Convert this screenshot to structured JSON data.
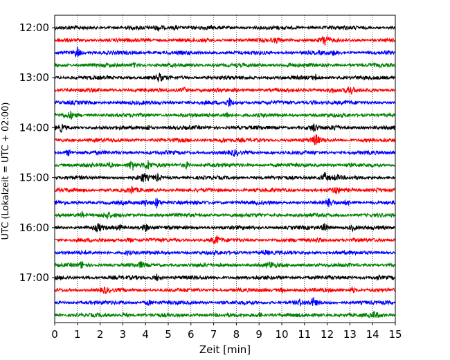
{
  "chart_data": {
    "type": "line",
    "title": "",
    "xlabel": "Zeit  [min]",
    "ylabel": "UTC (Lokalzeit = UTC + 02:00)",
    "xlim": [
      0,
      15
    ],
    "xticks": [
      "0",
      "1",
      "2",
      "3",
      "4",
      "5",
      "6",
      "7",
      "8",
      "9",
      "10",
      "11",
      "12",
      "13",
      "14",
      "15"
    ],
    "yticks": [
      "12:00",
      "13:00",
      "14:00",
      "15:00",
      "16:00",
      "17:00"
    ],
    "grid": "vertical dotted",
    "series_colors": [
      "#000000",
      "#ff0000",
      "#0000ff",
      "#008000"
    ],
    "traces": [
      {
        "time": "12:00",
        "color": "#000000",
        "events": [
          [
            4.6,
            0.5
          ],
          [
            5.3,
            0.3
          ]
        ]
      },
      {
        "time": "12:15",
        "color": "#ff0000",
        "events": [
          [
            11.9,
            1.0
          ],
          [
            9.8,
            0.3
          ]
        ]
      },
      {
        "time": "12:30",
        "color": "#0000ff",
        "events": [
          [
            1.0,
            0.9
          ],
          [
            12.3,
            0.3
          ]
        ]
      },
      {
        "time": "12:45",
        "color": "#008000",
        "events": [
          [
            3.5,
            0.3
          ],
          [
            10.3,
            0.3
          ]
        ]
      },
      {
        "time": "13:00",
        "color": "#000000",
        "events": [
          [
            4.6,
            0.6
          ],
          [
            11.5,
            0.3
          ]
        ]
      },
      {
        "time": "13:15",
        "color": "#ff0000",
        "events": [
          [
            5.7,
            0.4
          ],
          [
            13.0,
            0.7
          ],
          [
            12.2,
            0.4
          ]
        ]
      },
      {
        "time": "13:30",
        "color": "#0000ff",
        "events": [
          [
            7.7,
            0.7
          ],
          [
            11.4,
            0.3
          ]
        ]
      },
      {
        "time": "13:45",
        "color": "#008000",
        "events": [
          [
            0.7,
            0.5
          ],
          [
            7.6,
            0.5
          ]
        ]
      },
      {
        "time": "14:00",
        "color": "#000000",
        "events": [
          [
            0.3,
            0.5
          ],
          [
            11.4,
            0.6
          ],
          [
            12.4,
            0.4
          ],
          [
            4.1,
            0.4
          ]
        ]
      },
      {
        "time": "14:15",
        "color": "#ff0000",
        "events": [
          [
            11.5,
            0.9
          ],
          [
            7.4,
            0.4
          ]
        ]
      },
      {
        "time": "14:30",
        "color": "#0000ff",
        "events": [
          [
            0.6,
            0.5
          ],
          [
            7.9,
            0.4
          ]
        ]
      },
      {
        "time": "14:45",
        "color": "#008000",
        "events": [
          [
            3.4,
            1.0
          ],
          [
            4.1,
            0.7
          ],
          [
            5.8,
            0.5
          ],
          [
            2.4,
            0.4
          ]
        ]
      },
      {
        "time": "15:00",
        "color": "#000000",
        "events": [
          [
            3.9,
            0.7
          ],
          [
            4.5,
            0.5
          ],
          [
            11.9,
            0.8
          ],
          [
            12.4,
            0.4
          ]
        ]
      },
      {
        "time": "15:15",
        "color": "#ff0000",
        "events": [
          [
            3.4,
            0.5
          ],
          [
            12.4,
            0.5
          ],
          [
            14.2,
            0.3
          ]
        ]
      },
      {
        "time": "15:30",
        "color": "#0000ff",
        "events": [
          [
            4.5,
            0.8
          ],
          [
            4.0,
            0.5
          ],
          [
            12.1,
            0.6
          ],
          [
            12.9,
            0.4
          ]
        ]
      },
      {
        "time": "15:45",
        "color": "#008000",
        "events": [
          [
            1.2,
            0.5
          ],
          [
            2.3,
            0.5
          ]
        ]
      },
      {
        "time": "16:00",
        "color": "#000000",
        "events": [
          [
            1.9,
            0.6
          ],
          [
            4.0,
            0.6
          ],
          [
            2.9,
            0.4
          ],
          [
            11.9,
            0.6
          ],
          [
            13.1,
            0.4
          ]
        ]
      },
      {
        "time": "16:15",
        "color": "#ff0000",
        "events": [
          [
            7.1,
            0.8
          ],
          [
            11.6,
            0.4
          ],
          [
            3.3,
            0.3
          ]
        ]
      },
      {
        "time": "16:30",
        "color": "#0000ff",
        "events": [
          [
            3.2,
            0.3
          ],
          [
            9.3,
            0.3
          ]
        ]
      },
      {
        "time": "16:45",
        "color": "#008000",
        "events": [
          [
            1.2,
            0.5
          ],
          [
            3.8,
            0.4
          ],
          [
            9.5,
            0.5
          ]
        ]
      },
      {
        "time": "17:00",
        "color": "#000000",
        "events": [
          [
            4.5,
            0.5
          ],
          [
            14.2,
            0.3
          ]
        ]
      },
      {
        "time": "17:15",
        "color": "#ff0000",
        "events": [
          [
            2.2,
            0.5
          ],
          [
            13.1,
            0.5
          ],
          [
            10.0,
            0.3
          ]
        ]
      },
      {
        "time": "17:30",
        "color": "#0000ff",
        "events": [
          [
            4.1,
            0.4
          ],
          [
            11.4,
            0.6
          ],
          [
            10.8,
            0.4
          ]
        ]
      },
      {
        "time": "17:45",
        "color": "#008000",
        "events": [
          [
            14.1,
            0.5
          ],
          [
            9.0,
            0.3
          ],
          [
            3.1,
            0.3
          ]
        ]
      }
    ]
  }
}
